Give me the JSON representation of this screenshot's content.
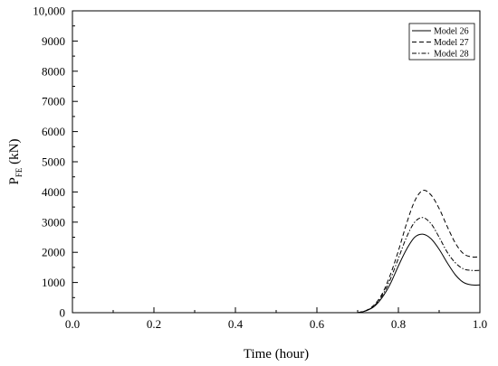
{
  "chart_data": {
    "type": "line",
    "xlabel": "Time (hour)",
    "ylabel_main": "P",
    "ylabel_sub": "FE",
    "ylabel_unit": " (kN)",
    "xlim": [
      0.0,
      1.0
    ],
    "ylim": [
      0,
      10000
    ],
    "xticks": [
      0.0,
      0.2,
      0.4,
      0.6,
      0.8,
      1.0
    ],
    "xtick_labels": [
      "0.0",
      "0.2",
      "0.4",
      "0.6",
      "0.8",
      "1.0"
    ],
    "yticks": [
      0,
      1000,
      2000,
      3000,
      4000,
      5000,
      6000,
      7000,
      8000,
      9000,
      10000
    ],
    "ytick_labels": [
      "0",
      "1000",
      "2000",
      "3000",
      "4000",
      "5000",
      "6000",
      "7000",
      "8000",
      "9000",
      "10,000"
    ],
    "grid": false,
    "legend_position": "top-right",
    "x": [
      0.7,
      0.72,
      0.74,
      0.76,
      0.78,
      0.8,
      0.82,
      0.84,
      0.86,
      0.88,
      0.9,
      0.92,
      0.94,
      0.96,
      0.98,
      1.0
    ],
    "series": [
      {
        "name": "Model 26",
        "dash": "solid",
        "values": [
          0,
          60,
          200,
          500,
          950,
          1550,
          2100,
          2500,
          2600,
          2450,
          2100,
          1650,
          1250,
          1000,
          920,
          920
        ]
      },
      {
        "name": "Model 27",
        "dash": "dashed",
        "values": [
          0,
          70,
          250,
          620,
          1250,
          2050,
          2950,
          3700,
          4050,
          3900,
          3450,
          2850,
          2300,
          1950,
          1850,
          1850
        ]
      },
      {
        "name": "Model 28",
        "dash": "dash-dot",
        "values": [
          0,
          65,
          220,
          560,
          1100,
          1800,
          2500,
          3000,
          3150,
          2950,
          2500,
          2000,
          1650,
          1450,
          1400,
          1400
        ]
      }
    ]
  }
}
